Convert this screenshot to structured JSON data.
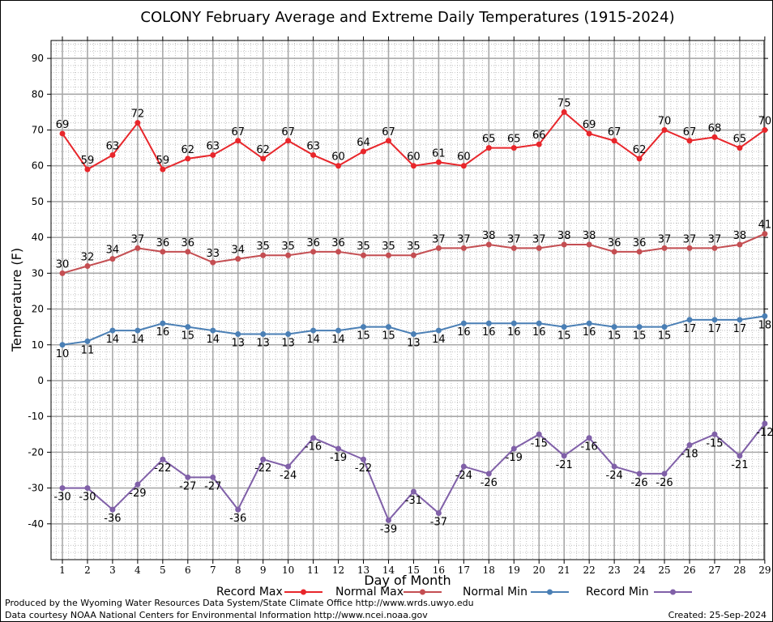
{
  "chart_data": {
    "type": "line",
    "title": "COLONY February Average and Extreme Daily Temperatures (1915-2024)",
    "xlabel": "Day of Month",
    "ylabel": "Temperature (F)",
    "ylim": [
      -50,
      95
    ],
    "y_ticks": [
      90,
      80,
      70,
      60,
      50,
      40,
      30,
      20,
      10,
      0,
      -10,
      -20,
      -30,
      -40
    ],
    "x": [
      1,
      2,
      3,
      4,
      5,
      6,
      7,
      8,
      9,
      10,
      11,
      12,
      13,
      14,
      15,
      16,
      17,
      18,
      19,
      20,
      21,
      22,
      23,
      24,
      25,
      26,
      27,
      28,
      29
    ],
    "grid": true,
    "legend_position": "bottom",
    "series": [
      {
        "name": "Record Max",
        "color": "#e8262b",
        "values": [
          69,
          59,
          63,
          72,
          59,
          62,
          63,
          67,
          62,
          67,
          63,
          60,
          64,
          67,
          60,
          61,
          60,
          65,
          65,
          66,
          75,
          69,
          67,
          62,
          70,
          67,
          68,
          65,
          70
        ]
      },
      {
        "name": "Normal Max",
        "color": "#c44e52",
        "values": [
          30,
          32,
          34,
          37,
          36,
          36,
          33,
          34,
          35,
          35,
          36,
          36,
          35,
          35,
          35,
          37,
          37,
          38,
          37,
          37,
          38,
          38,
          36,
          36,
          37,
          37,
          37,
          38,
          41
        ]
      },
      {
        "name": "Normal Min",
        "color": "#4a7fb5",
        "values": [
          10,
          11,
          14,
          14,
          16,
          15,
          14,
          13,
          13,
          13,
          14,
          14,
          15,
          15,
          13,
          14,
          16,
          16,
          16,
          16,
          15,
          16,
          15,
          15,
          15,
          17,
          17,
          17,
          18
        ]
      },
      {
        "name": "Record Min",
        "color": "#8060a8",
        "values": [
          -30,
          -30,
          -36,
          -29,
          -22,
          -27,
          -27,
          -36,
          -22,
          -24,
          -16,
          -19,
          -22,
          -39,
          -31,
          -37,
          -24,
          -26,
          -19,
          -15,
          -21,
          -16,
          -24,
          -26,
          -26,
          -18,
          -15,
          -21,
          -12
        ]
      }
    ]
  },
  "footer": {
    "produced_by": "Produced by the Wyoming Water Resources Data System/State Climate Office http://www.wrds.uwyo.edu",
    "courtesy": "Data courtesy NOAA National Centers for Environmental Information http://www.ncei.noaa.gov",
    "created": "Created: 25-Sep-2024"
  }
}
